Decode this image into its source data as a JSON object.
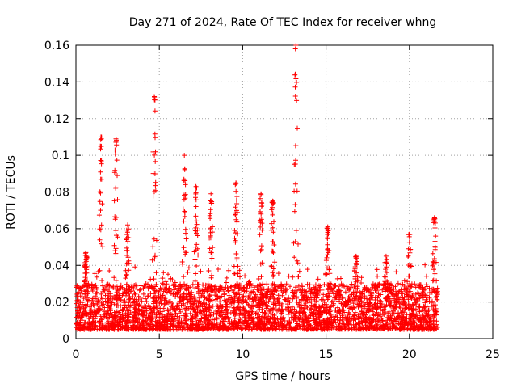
{
  "chart_data": {
    "type": "scatter",
    "title": "Day 271 of 2024, Rate Of TEC Index for receiver whng",
    "xlabel": "GPS time / hours",
    "ylabel": "ROTI / TECUs",
    "xlim": [
      0,
      25
    ],
    "ylim": [
      0,
      0.16
    ],
    "x_ticks": [
      0,
      5,
      10,
      15,
      20,
      25
    ],
    "x_tick_labels": [
      "0",
      "5",
      "10",
      "15",
      "20",
      "25"
    ],
    "y_ticks": [
      0,
      0.02,
      0.04,
      0.06,
      0.08,
      0.1,
      0.12,
      0.14,
      0.16
    ],
    "y_tick_labels": [
      "0",
      "0.02",
      "0.04",
      "0.06",
      "0.08",
      "0.1",
      "0.12",
      "0.14",
      "0.16"
    ],
    "grid": true,
    "marker": "+",
    "series": [
      {
        "name": "ROTI",
        "color": "#ff0000",
        "baseline_range": [
          0.005,
          0.03
        ],
        "x_extent": [
          0,
          21.7
        ],
        "spikes": [
          {
            "x": 0.6,
            "peak": 0.047
          },
          {
            "x": 1.5,
            "peak": 0.11
          },
          {
            "x": 2.4,
            "peak": 0.109
          },
          {
            "x": 3.1,
            "peak": 0.062
          },
          {
            "x": 4.7,
            "peak": 0.132
          },
          {
            "x": 6.5,
            "peak": 0.1
          },
          {
            "x": 7.2,
            "peak": 0.083
          },
          {
            "x": 8.1,
            "peak": 0.079
          },
          {
            "x": 9.6,
            "peak": 0.085
          },
          {
            "x": 11.1,
            "peak": 0.079
          },
          {
            "x": 11.8,
            "peak": 0.075
          },
          {
            "x": 13.2,
            "peak": 0.16
          },
          {
            "x": 15.1,
            "peak": 0.061
          },
          {
            "x": 16.8,
            "peak": 0.045
          },
          {
            "x": 18.6,
            "peak": 0.045
          },
          {
            "x": 20.0,
            "peak": 0.057
          },
          {
            "x": 21.5,
            "peak": 0.066
          }
        ]
      }
    ]
  }
}
